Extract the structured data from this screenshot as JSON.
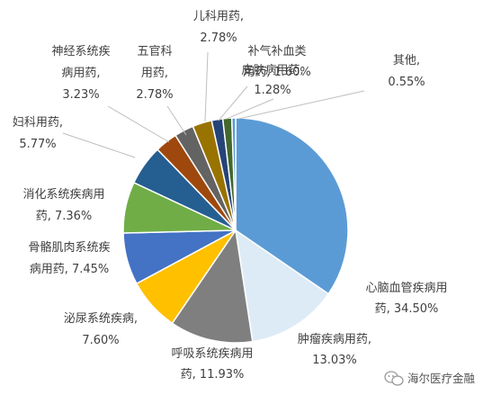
{
  "chart_data": {
    "type": "pie",
    "title": "",
    "slices": [
      {
        "label": "心脑血管疾病用药",
        "value": 34.5,
        "color": "#5B9BD5",
        "text": [
          "心脑血管疾病用",
          "药, 34.50%"
        ]
      },
      {
        "label": "肿瘤疾病用药",
        "value": 13.03,
        "color": "#DDEBF7",
        "text": [
          "肿瘤疾病用药,",
          "13.03%"
        ]
      },
      {
        "label": "呼吸系统疾病用药",
        "value": 11.93,
        "color": "#7F7F7F",
        "text": [
          "呼吸系统疾病用",
          "药, 11.93%"
        ]
      },
      {
        "label": "泌尿系统疾病",
        "value": 7.6,
        "color": "#FFC000",
        "text": [
          "泌尿系统疾病,",
          "7.60%"
        ]
      },
      {
        "label": "骨骼肌肉系统疾病用药",
        "value": 7.45,
        "color": "#4472C4",
        "text": [
          "骨骼肌肉系统疾",
          "病用药, 7.45%"
        ]
      },
      {
        "label": "消化系统疾病用药",
        "value": 7.36,
        "color": "#70AD47",
        "text": [
          "消化系统疾病用",
          "药, 7.36%"
        ]
      },
      {
        "label": "妇科用药",
        "value": 5.77,
        "color": "#255E91",
        "text": [
          "妇科用药,",
          "5.77%"
        ]
      },
      {
        "label": "神经系统疾病用药",
        "value": 3.23,
        "color": "#9E480E",
        "text": [
          "神经系统疾",
          "病用药,",
          "3.23%"
        ]
      },
      {
        "label": "五官科用药",
        "value": 2.78,
        "color": "#636363",
        "text": [
          "五官科",
          "用药,",
          "2.78%"
        ]
      },
      {
        "label": "儿科用药",
        "value": 2.78,
        "color": "#997300",
        "text": [
          "儿科用药,",
          "2.78%"
        ]
      },
      {
        "label": "补气补血类",
        "value": 1.6,
        "color": "#264478",
        "text": [
          "补气补血类",
          "用药, 1.60%"
        ]
      },
      {
        "label": "皮肤病用药",
        "value": 1.28,
        "color": "#43682B",
        "text": [
          "皮肤病用药,",
          "1.28%"
        ]
      },
      {
        "label": "其他",
        "value": 0.55,
        "color": "#5B9BD5",
        "text": [
          "其他,",
          "0.55%"
        ]
      }
    ]
  },
  "watermark": {
    "text": "海尔医疗金融",
    "icon": "wechat-icon"
  }
}
